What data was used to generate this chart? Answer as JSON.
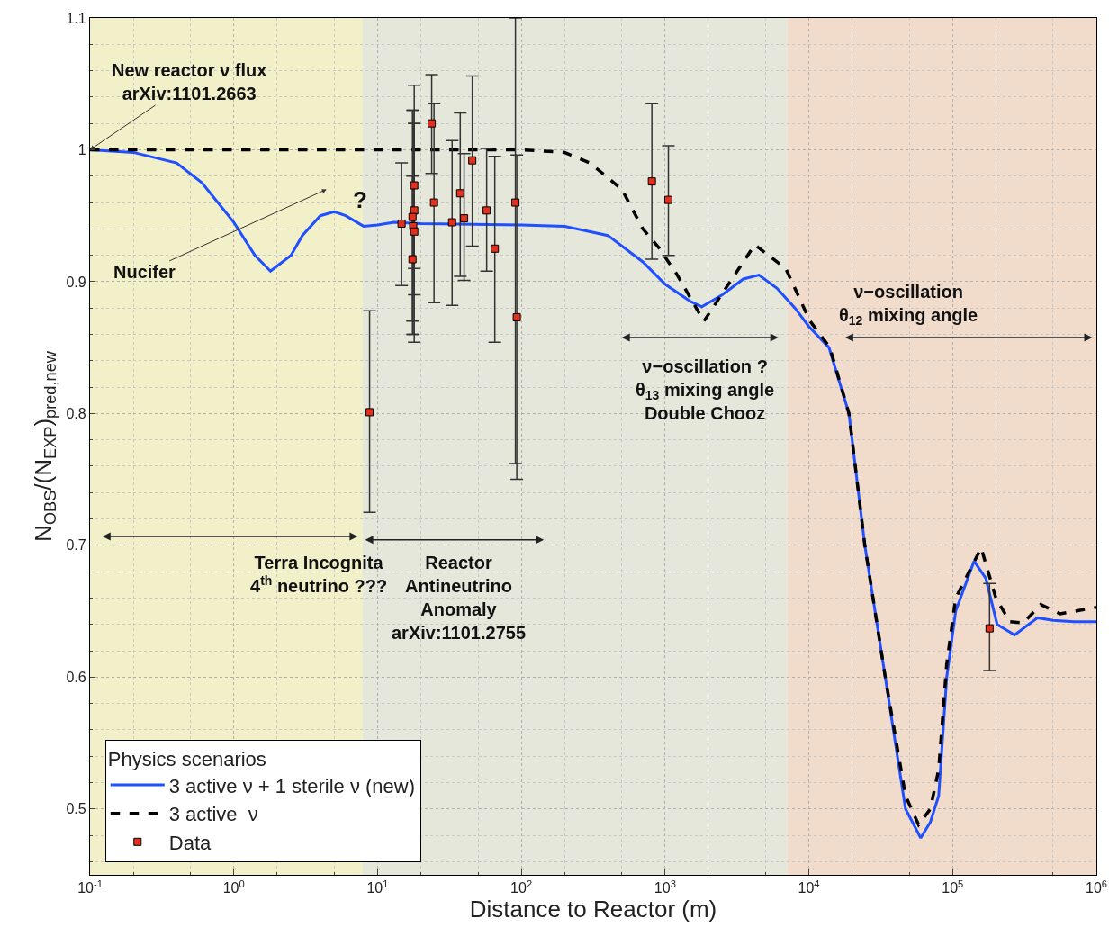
{
  "chart_data": {
    "type": "line",
    "xlabel": "Distance to Reactor (m)",
    "ylabel": "N$_{OBS}$/(N$_{EXP}$)$_{pred,new}$",
    "legend_title": "Physics scenarios",
    "legend": "bottom left",
    "grid": true,
    "log": "x",
    "xlim": [
      0.1,
      1000000
    ],
    "xticks": [
      {
        "value": 0.1,
        "label": "10$^{-1}$"
      },
      {
        "value": 1,
        "label": "10$^{0}$"
      },
      {
        "value": 10,
        "label": "10$^{1}$"
      },
      {
        "value": 100,
        "label": "10$^{2}$"
      },
      {
        "value": 1000,
        "label": "10$^{3}$"
      },
      {
        "value": 10000,
        "label": "10$^{4}$"
      },
      {
        "value": 100000,
        "label": "10$^{5}$"
      },
      {
        "value": 1000000,
        "label": "10$^{6}$"
      }
    ],
    "ylim": [
      0.45,
      1.1
    ],
    "yticks": [
      0.5,
      0.6,
      0.7,
      0.8,
      0.9,
      1,
      1.1
    ],
    "bands": [
      {
        "axis": "x",
        "from": 0.1,
        "to": 7.9,
        "color": "#f2f0c8"
      },
      {
        "axis": "x",
        "from": 7.9,
        "to": 7100,
        "color": "#e4e7da"
      },
      {
        "axis": "x",
        "from": 7100,
        "to": 1000000,
        "color": "#f1dccb"
      }
    ],
    "series": [
      {
        "name": "3 active ν + 1 sterile ν (new)",
        "color": "#1f4fff",
        "line_style": "solid",
        "marker": "none",
        "x": [
          0.1,
          0.2,
          0.4,
          0.6,
          1.0,
          1.4,
          1.8,
          2.5,
          3,
          4,
          5,
          6,
          8,
          10,
          13,
          20,
          100,
          200,
          400,
          700,
          1000,
          1500,
          1800,
          2500,
          3500,
          4500,
          6000,
          8000,
          10000,
          13800,
          19000,
          24500,
          34000,
          47000,
          60000,
          70000,
          80000,
          91000,
          105000,
          141000,
          170000,
          204000,
          270000,
          390000,
          500000,
          700000,
          1000000
        ],
        "values": [
          1.0,
          0.998,
          0.99,
          0.975,
          0.945,
          0.92,
          0.908,
          0.92,
          0.935,
          0.95,
          0.953,
          0.95,
          0.942,
          0.943,
          0.945,
          0.944,
          0.943,
          0.942,
          0.935,
          0.915,
          0.898,
          0.885,
          0.881,
          0.89,
          0.902,
          0.905,
          0.895,
          0.88,
          0.866,
          0.85,
          0.8,
          0.7,
          0.6,
          0.5,
          0.478,
          0.49,
          0.51,
          0.6,
          0.65,
          0.688,
          0.675,
          0.64,
          0.632,
          0.645,
          0.643,
          0.642,
          0.642
        ]
      },
      {
        "name": "3 active  ν",
        "color": "#000000",
        "line_style": "dashed",
        "marker": "none",
        "x": [
          0.1,
          1,
          10,
          100,
          200,
          300,
          500,
          700,
          900,
          1200,
          1860,
          4200,
          6900,
          10200,
          14000,
          19000,
          24500,
          34000,
          47000,
          58000,
          70000,
          80000,
          91000,
          105000,
          158000,
          200000,
          250000,
          310000,
          410000,
          560000,
          1000000
        ],
        "values": [
          1.0,
          1.0,
          1.0,
          1.0,
          0.998,
          0.99,
          0.97,
          0.94,
          0.926,
          0.906,
          0.87,
          0.928,
          0.91,
          0.87,
          0.85,
          0.8,
          0.7,
          0.6,
          0.51,
          0.488,
          0.5,
          0.53,
          0.61,
          0.66,
          0.698,
          0.66,
          0.642,
          0.641,
          0.655,
          0.648,
          0.653
        ]
      },
      {
        "name": "Data",
        "type": "scatter",
        "color": "#e0301e",
        "marker": "square",
        "x": [
          8.8,
          14.7,
          18,
          18,
          17.5,
          17.7,
          18,
          17.5,
          23.8,
          24.7,
          33,
          37.6,
          40,
          45.6,
          57.4,
          65.4,
          91,
          93,
          809,
          1054,
          180700
        ],
        "values": [
          0.801,
          0.944,
          0.973,
          0.954,
          0.949,
          0.942,
          0.938,
          0.917,
          1.02,
          0.96,
          0.945,
          0.967,
          0.948,
          0.992,
          0.954,
          0.925,
          0.96,
          0.873,
          0.976,
          0.962,
          0.637
        ],
        "errors": [
          [
            0.725,
            0.878
          ],
          [
            0.897,
            0.99
          ],
          [
            0.91,
            1.049
          ],
          [
            0.89,
            1.02
          ],
          [
            0.87,
            1.03
          ],
          [
            0.86,
            1.03
          ],
          [
            0.854,
            1.02
          ],
          [
            0.86,
            0.98
          ],
          [
            0.982,
            1.057
          ],
          [
            0.884,
            1.035
          ],
          [
            0.882,
            1.007
          ],
          [
            0.904,
            1.028
          ],
          [
            0.901,
            0.997
          ],
          [
            0.927,
            1.056
          ],
          [
            0.908,
            1.001
          ],
          [
            0.854,
            0.995
          ],
          [
            0.762,
            1.1
          ],
          [
            0.75,
            0.996
          ],
          [
            0.917,
            1.035
          ],
          [
            0.92,
            1.003
          ],
          [
            0.605,
            0.671
          ]
        ]
      }
    ],
    "annotations": [
      {
        "text": "New reactor ν flux\narXiv:1101.2663",
        "x": 0.1,
        "y": 1.0
      },
      "?",
      "Nucifer",
      "Terra Incognita\n4$^{th}$ neutrino ???",
      "Reactor\nAntineutrino\nAnomaly\narXiv:1101.2755",
      "ν−oscillation ?\nθ$_{13}$ mixing angle\nDouble Chooz",
      "ν−oscillation\nθ$_{12}$ mixing angle"
    ]
  }
}
